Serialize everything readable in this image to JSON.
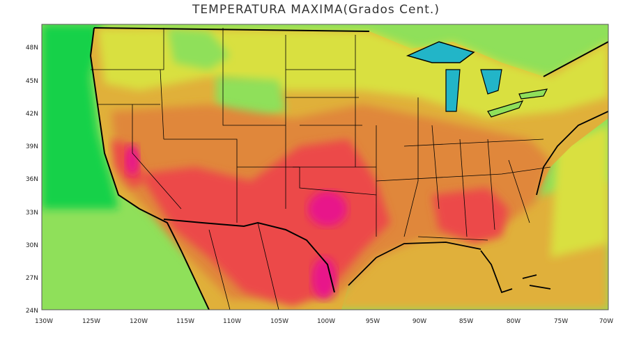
{
  "title": "TEMPERATURA MAXIMA(Grados Cent.)",
  "map": {
    "lon_range": [
      -130,
      -70
    ],
    "lat_range": [
      24,
      50
    ],
    "x_ticks": [
      "130W",
      "125W",
      "120W",
      "115W",
      "110W",
      "105W",
      "100W",
      "95W",
      "90W",
      "85W",
      "80W",
      "75W",
      "70W"
    ],
    "y_ticks": [
      "24N",
      "27N",
      "30N",
      "33N",
      "36N",
      "39N",
      "42N",
      "45N",
      "48N"
    ],
    "colors": {
      "cool_ocean": "#15d14a",
      "ocean_light": "#8fe05a",
      "yellow": "#d9e040",
      "orange_yellow": "#e0b03a",
      "orange": "#e0873a",
      "red": "#ec4a4a",
      "magenta": "#e8138a",
      "lakes": "#22b5c8"
    }
  }
}
